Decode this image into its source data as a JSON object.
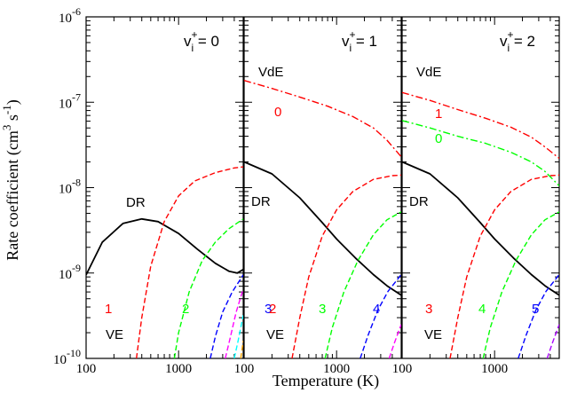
{
  "chart_data": {
    "type": "line",
    "title": "",
    "xlabel": "Temperature (K)",
    "ylabel_main": "Rate coefficient (cm",
    "ylabel_exp1": "3",
    "ylabel_mid": " s",
    "ylabel_exp2": "-1",
    "ylabel_end": ")",
    "yscale": "log",
    "xscale": "log",
    "ylim": [
      1e-10,
      1e-06
    ],
    "xlim": [
      100,
      5000
    ],
    "x_tick_labels": [
      "100",
      "1000"
    ],
    "y_tick_labels": [
      {
        "base": "10",
        "exp": "-10",
        "value": 1e-10
      },
      {
        "base": "10",
        "exp": "-9",
        "value": 1e-09
      },
      {
        "base": "10",
        "exp": "-8",
        "value": 1e-08
      },
      {
        "base": "10",
        "exp": "-7",
        "value": 1e-07
      },
      {
        "base": "10",
        "exp": "-6",
        "value": 1e-06
      }
    ],
    "colors": {
      "DR": "#000000",
      "0": "#ff0000",
      "1": "#00ff00",
      "2": "#0000ff",
      "3": "#ff00ff",
      "4": "#00ffff",
      "5": "#ffa500",
      "VdE0": "#ff0000",
      "VdE1": "#00ff00"
    },
    "panels": [
      {
        "label_prefix": "v",
        "label_sup": "+",
        "label_sub": "i",
        "label_suffix": " = 0",
        "x_tick_labels": [
          "100",
          "1000"
        ],
        "DR": {
          "x": [
            100,
            150,
            250,
            400,
            600,
            1000,
            1600,
            2500,
            3500,
            4300,
            5000
          ],
          "y": [
            9.5e-10,
            2.3e-09,
            3.8e-09,
            4.3e-09,
            4e-09,
            2.9e-09,
            1.9e-09,
            1.3e-09,
            1.05e-09,
            1e-09,
            1.1e-09
          ]
        },
        "VE": [
          {
            "name": "1",
            "color": "#ff0000",
            "x": [
              350,
              400,
              500,
              700,
              1000,
              1500,
              2500,
              4000,
              5000
            ],
            "y": [
              1e-10,
              3e-10,
              1.2e-09,
              4e-09,
              8e-09,
              1.2e-08,
              1.5e-08,
              1.7e-08,
              1.75e-08
            ]
          },
          {
            "name": "2",
            "color": "#00ff00",
            "x": [
              900,
              1000,
              1300,
              1800,
              2500,
              3500,
              5000
            ],
            "y": [
              1e-10,
              2e-10,
              6e-10,
              1.4e-09,
              2.3e-09,
              3.3e-09,
              4.3e-09
            ]
          },
          {
            "name": "3",
            "color": "#0000ff",
            "x": [
              2200,
              2500,
              3000,
              3800,
              5000
            ],
            "y": [
              1e-10,
              1.8e-10,
              3.5e-10,
              6e-10,
              9.5e-10
            ]
          },
          {
            "name": "4",
            "color": "#ff00ff",
            "x": [
              3200,
              3600,
              4200,
              5000
            ],
            "y": [
              1e-10,
              1.7e-10,
              3.5e-10,
              6.5e-10
            ]
          },
          {
            "name": "5",
            "color": "#00ffff",
            "x": [
              4000,
              4400,
              5000
            ],
            "y": [
              1e-10,
              1.6e-10,
              3.2e-10
            ]
          },
          {
            "name": "6",
            "color": "#ffa500",
            "x": [
              4700,
              5000
            ],
            "y": [
              1e-10,
              1.6e-10
            ]
          }
        ],
        "VdE": [],
        "labels": {
          "DR": "DR",
          "VE": "VE",
          "VdE": ""
        },
        "curve_labels": [
          {
            "text": "1",
            "color": "#ff0000"
          },
          {
            "text": "2",
            "color": "#00ff00"
          },
          {
            "text": "3",
            "color": "#0000ff"
          }
        ]
      },
      {
        "label_prefix": "v",
        "label_sup": "+",
        "label_sub": "i",
        "label_suffix": " = 1",
        "x_tick_labels": [
          "100",
          "1000"
        ],
        "DR": {
          "x": [
            100,
            200,
            400,
            700,
            1000,
            1600,
            2500,
            3500,
            5000
          ],
          "y": [
            2e-08,
            1.45e-08,
            7.6e-09,
            3.9e-09,
            2.5e-09,
            1.5e-09,
            9.6e-10,
            7.1e-10,
            5.5e-10
          ]
        },
        "VE": [
          {
            "name": "2",
            "color": "#ff0000",
            "x": [
              330,
              400,
              500,
              700,
              1000,
              1500,
              2500,
              4000,
              5000
            ],
            "y": [
              1e-10,
              3e-10,
              9e-10,
              2.7e-09,
              5.5e-09,
              9e-09,
              1.25e-08,
              1.38e-08,
              1.4e-08
            ]
          },
          {
            "name": "3",
            "color": "#00ff00",
            "x": [
              750,
              900,
              1200,
              1700,
              2500,
              3500,
              5000
            ],
            "y": [
              1e-10,
              2.3e-10,
              6e-10,
              1.4e-09,
              2.8e-09,
              4.2e-09,
              5.2e-09
            ]
          },
          {
            "name": "4",
            "color": "#0000ff",
            "x": [
              1800,
              2200,
              2800,
              3600,
              5000
            ],
            "y": [
              1e-10,
              1.9e-10,
              3.7e-10,
              6.1e-10,
              9.6e-10
            ]
          },
          {
            "name": "5",
            "color": "#ff00ff",
            "x": [
              3700,
              4200,
              5000
            ],
            "y": [
              1e-10,
              1.5e-10,
              2.5e-10
            ]
          }
        ],
        "VdE": [
          {
            "name": "0",
            "color": "#ff0000",
            "x": [
              100,
              200,
              400,
              800,
              1500,
              2500,
              3500,
              5000
            ],
            "y": [
              1.8e-07,
              1.45e-07,
              1.15e-07,
              9e-08,
              6.8e-08,
              5e-08,
              3.6e-08,
              2.3e-08
            ]
          }
        ],
        "labels": {
          "DR": "DR",
          "VE": "VE",
          "VdE": "VdE"
        },
        "curve_labels": [
          {
            "text": "0",
            "color": "#ff0000"
          },
          {
            "text": "2",
            "color": "#ff0000"
          },
          {
            "text": "3",
            "color": "#00ff00"
          },
          {
            "text": "4",
            "color": "#0000ff"
          }
        ]
      },
      {
        "label_prefix": "v",
        "label_sup": "+",
        "label_sub": "i",
        "label_suffix": " = 2",
        "x_tick_labels": [
          "100",
          "1000"
        ],
        "DR": {
          "x": [
            100,
            200,
            400,
            700,
            1000,
            1600,
            2500,
            3500,
            5000
          ],
          "y": [
            2e-08,
            1.45e-08,
            7.6e-09,
            3.9e-09,
            2.5e-09,
            1.5e-09,
            9.6e-10,
            7.1e-10,
            5.5e-10
          ]
        },
        "VE": [
          {
            "name": "3",
            "color": "#ff0000",
            "x": [
              330,
              400,
              500,
              700,
              1000,
              1500,
              2500,
              4000,
              5000
            ],
            "y": [
              1e-10,
              3e-10,
              9e-10,
              2.7e-09,
              5.5e-09,
              9e-09,
              1.25e-08,
              1.38e-08,
              1.4e-08
            ]
          },
          {
            "name": "4",
            "color": "#00ff00",
            "x": [
              750,
              900,
              1200,
              1700,
              2500,
              3500,
              5000
            ],
            "y": [
              1e-10,
              2.3e-10,
              6e-10,
              1.4e-09,
              2.8e-09,
              4.2e-09,
              5.2e-09
            ]
          },
          {
            "name": "5",
            "color": "#0000ff",
            "x": [
              1800,
              2200,
              2800,
              3600,
              5000
            ],
            "y": [
              1e-10,
              1.9e-10,
              3.7e-10,
              6.1e-10,
              9.6e-10
            ]
          },
          {
            "name": "6",
            "color": "#aa00ff",
            "x": [
              3700,
              4200,
              5000
            ],
            "y": [
              1e-10,
              1.5e-10,
              2.5e-10
            ]
          }
        ],
        "VdE": [
          {
            "name": "1",
            "color": "#ff0000",
            "x": [
              100,
              200,
              400,
              800,
              1500,
              2500,
              3500,
              5000
            ],
            "y": [
              1.3e-07,
              1.05e-07,
              8.2e-08,
              6.5e-08,
              5.1e-08,
              3.9e-08,
              3e-08,
              2.2e-08
            ]
          },
          {
            "name": "0",
            "color": "#00ff00",
            "x": [
              100,
              200,
              400,
              800,
              1500,
              2500,
              3500,
              5000
            ],
            "y": [
              6.1e-08,
              5e-08,
              4e-08,
              3.3e-08,
              2.6e-08,
              2e-08,
              1.55e-08,
              1.05e-08
            ]
          }
        ],
        "labels": {
          "DR": "DR",
          "VE": "VE",
          "VdE": "VdE"
        },
        "curve_labels": [
          {
            "text": "1",
            "color": "#ff0000"
          },
          {
            "text": "0",
            "color": "#00ff00"
          },
          {
            "text": "3",
            "color": "#ff0000"
          },
          {
            "text": "4",
            "color": "#00ff00"
          },
          {
            "text": "5",
            "color": "#0000ff"
          }
        ]
      }
    ]
  }
}
